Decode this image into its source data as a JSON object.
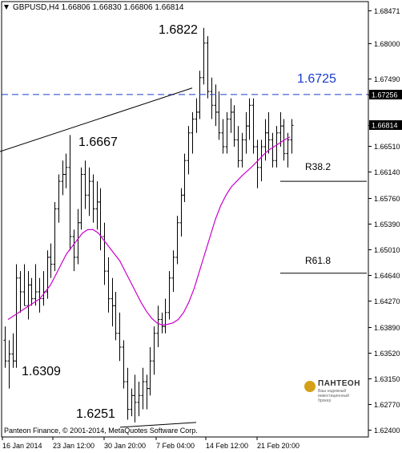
{
  "header": {
    "symbol_line": "GBPUSD,H4  1.66806 1.66830 1.66806 1.66814"
  },
  "chart_data": {
    "type": "ohlc",
    "symbol": "GBPUSD",
    "timeframe": "H4",
    "y_axis_ticks": [
      1.68471,
      1.68,
      1.6749,
      1.67256,
      1.66814,
      1.6651,
      1.6614,
      1.6576,
      1.6539,
      1.6501,
      1.6464,
      1.6427,
      1.6389,
      1.6352,
      1.6315,
      1.6277,
      1.624
    ],
    "highlighted_prices": {
      "line_level": "1.67256",
      "current_price": "1.66814"
    },
    "ylim": [
      1.623,
      1.686
    ],
    "x_axis_labels": [
      "16 Jan 2014",
      "23 Jan 12:00",
      "30 Jan 20:00",
      "7 Feb 04:00",
      "14 Feb 12:00",
      "21 Feb 20:00"
    ],
    "annotations": {
      "high": "1.6822",
      "left_high": "1.6667",
      "resistance_line": "1.6725",
      "left_low": "1.6309",
      "low": "1.6251",
      "fib_382": "R38.2",
      "fib_618": "R61.8"
    },
    "fib_levels": {
      "R38.2": 1.66,
      "R61.8": 1.6467
    },
    "resistance_level": 1.67256,
    "trendline_upper": [
      {
        "x": 0,
        "y": 1.6643
      },
      {
        "x": 240,
        "y": 1.6735
      }
    ],
    "trendline_lower": [
      {
        "x": 150,
        "y": 1.6244
      },
      {
        "x": 245,
        "y": 1.6251
      }
    ],
    "ma_color": "#cc00cc",
    "bar_color": "#000000",
    "dashed_line_color": "#1a3ccf",
    "grid": false,
    "bars": [
      [
        1.637,
        1.639,
        1.633,
        1.634
      ],
      [
        1.634,
        1.637,
        1.63,
        1.635
      ],
      [
        1.635,
        1.638,
        1.633,
        1.634
      ],
      [
        1.634,
        1.648,
        1.633,
        1.646
      ],
      [
        1.646,
        1.647,
        1.641,
        1.644
      ],
      [
        1.644,
        1.648,
        1.642,
        1.642
      ],
      [
        1.642,
        1.647,
        1.64,
        1.645
      ],
      [
        1.645,
        1.646,
        1.642,
        1.643
      ],
      [
        1.643,
        1.648,
        1.642,
        1.644
      ],
      [
        1.644,
        1.646,
        1.641,
        1.643
      ],
      [
        1.643,
        1.647,
        1.642,
        1.644
      ],
      [
        1.644,
        1.65,
        1.643,
        1.649
      ],
      [
        1.649,
        1.651,
        1.646,
        1.648
      ],
      [
        1.648,
        1.657,
        1.647,
        1.656
      ],
      [
        1.656,
        1.661,
        1.654,
        1.66
      ],
      [
        1.66,
        1.663,
        1.658,
        1.661
      ],
      [
        1.661,
        1.664,
        1.659,
        1.662
      ],
      [
        1.662,
        1.6667,
        1.65,
        1.652
      ],
      [
        1.652,
        1.653,
        1.647,
        1.649
      ],
      [
        1.649,
        1.656,
        1.648,
        1.654
      ],
      [
        1.654,
        1.662,
        1.653,
        1.661
      ],
      [
        1.661,
        1.663,
        1.656,
        1.658
      ],
      [
        1.658,
        1.662,
        1.655,
        1.66
      ],
      [
        1.66,
        1.661,
        1.654,
        1.656
      ],
      [
        1.656,
        1.66,
        1.653,
        1.657
      ],
      [
        1.657,
        1.659,
        1.65,
        1.652
      ],
      [
        1.652,
        1.654,
        1.645,
        1.647
      ],
      [
        1.647,
        1.649,
        1.641,
        1.643
      ],
      [
        1.643,
        1.646,
        1.639,
        1.642
      ],
      [
        1.642,
        1.644,
        1.637,
        1.638
      ],
      [
        1.638,
        1.641,
        1.634,
        1.636
      ],
      [
        1.636,
        1.637,
        1.63,
        1.631
      ],
      [
        1.631,
        1.633,
        1.6255,
        1.627
      ],
      [
        1.627,
        1.63,
        1.626,
        1.629
      ],
      [
        1.629,
        1.632,
        1.6251,
        1.628
      ],
      [
        1.628,
        1.631,
        1.626,
        1.629
      ],
      [
        1.629,
        1.633,
        1.627,
        1.631
      ],
      [
        1.631,
        1.632,
        1.627,
        1.63
      ],
      [
        1.63,
        1.636,
        1.629,
        1.634
      ],
      [
        1.634,
        1.639,
        1.632,
        1.638
      ],
      [
        1.638,
        1.642,
        1.636,
        1.64
      ],
      [
        1.64,
        1.641,
        1.638,
        1.639
      ],
      [
        1.639,
        1.643,
        1.638,
        1.641
      ],
      [
        1.641,
        1.647,
        1.64,
        1.646
      ],
      [
        1.646,
        1.65,
        1.644,
        1.649
      ],
      [
        1.649,
        1.655,
        1.648,
        1.654
      ],
      [
        1.654,
        1.659,
        1.652,
        1.658
      ],
      [
        1.658,
        1.664,
        1.657,
        1.663
      ],
      [
        1.663,
        1.668,
        1.661,
        1.667
      ],
      [
        1.667,
        1.67,
        1.664,
        1.669
      ],
      [
        1.669,
        1.672,
        1.667,
        1.67
      ],
      [
        1.67,
        1.676,
        1.669,
        1.675
      ],
      [
        1.675,
        1.6822,
        1.674,
        1.68
      ],
      [
        1.68,
        1.681,
        1.672,
        1.673
      ],
      [
        1.673,
        1.675,
        1.669,
        1.671
      ],
      [
        1.671,
        1.674,
        1.668,
        1.67
      ],
      [
        1.67,
        1.673,
        1.666,
        1.667
      ],
      [
        1.667,
        1.669,
        1.664,
        1.665
      ],
      [
        1.665,
        1.67,
        1.664,
        1.669
      ],
      [
        1.669,
        1.672,
        1.667,
        1.67
      ],
      [
        1.67,
        1.671,
        1.665,
        1.666
      ],
      [
        1.666,
        1.668,
        1.662,
        1.663
      ],
      [
        1.663,
        1.667,
        1.662,
        1.666
      ],
      [
        1.666,
        1.67,
        1.664,
        1.668
      ],
      [
        1.668,
        1.672,
        1.666,
        1.671
      ],
      [
        1.671,
        1.672,
        1.664,
        1.665
      ],
      [
        1.665,
        1.666,
        1.659,
        1.662
      ],
      [
        1.662,
        1.666,
        1.66,
        1.665
      ],
      [
        1.665,
        1.669,
        1.663,
        1.667
      ],
      [
        1.667,
        1.67,
        1.664,
        1.666
      ],
      [
        1.666,
        1.667,
        1.662,
        1.663
      ],
      [
        1.663,
        1.668,
        1.662,
        1.667
      ],
      [
        1.667,
        1.67,
        1.665,
        1.668
      ],
      [
        1.668,
        1.669,
        1.663,
        1.664
      ],
      [
        1.664,
        1.667,
        1.662,
        1.666
      ],
      [
        1.666,
        1.669,
        1.664,
        1.6681
      ]
    ],
    "ma": [
      1.64,
      1.6405,
      1.641,
      1.6415,
      1.642,
      1.6425,
      1.643,
      1.644,
      1.645,
      1.6465,
      1.648,
      1.6495,
      1.6505,
      1.6515,
      1.6525,
      1.653,
      1.653,
      1.6525,
      1.6515,
      1.6505,
      1.6495,
      1.6485,
      1.647,
      1.6455,
      1.644,
      1.6425,
      1.6412,
      1.6402,
      1.6395,
      1.6392,
      1.6393,
      1.6395,
      1.64,
      1.641,
      1.6425,
      1.6445,
      1.647,
      1.6495,
      1.652,
      1.6545,
      1.6565,
      1.658,
      1.6592,
      1.66,
      1.6608,
      1.6615,
      1.6622,
      1.663,
      1.6638,
      1.6645,
      1.665,
      1.6655,
      1.666,
      1.6664
    ]
  },
  "copyright": "Panteon Finance, © 2001-2014, MetaQuotes Software Corp.",
  "logo": {
    "name": "ПАНТЕОН",
    "sub1": "Ваш надежный",
    "sub2": "инвестиционный брокер"
  }
}
